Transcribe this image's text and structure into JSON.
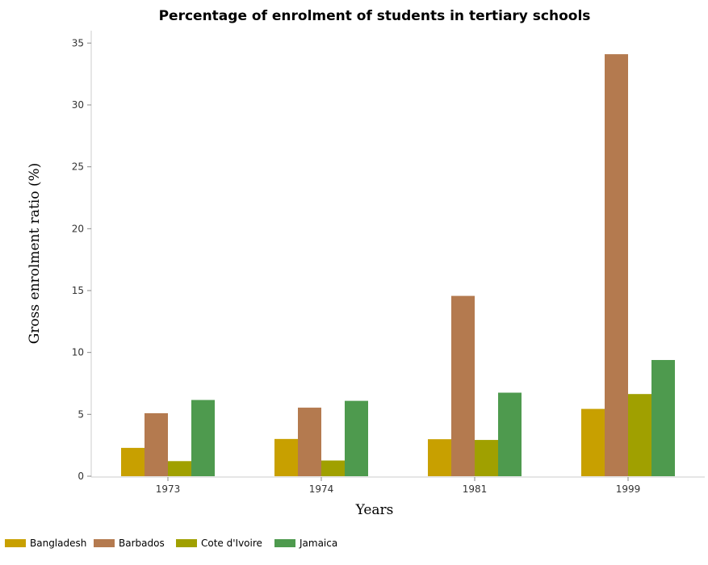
{
  "chart_data": {
    "type": "bar",
    "title": "Percentage of enrolment of students in tertiary schools",
    "xlabel": "Years",
    "ylabel": "Gross enrolment ratio (%)",
    "categories": [
      "1973",
      "1974",
      "1981",
      "1999"
    ],
    "ylim": [
      0,
      36
    ],
    "yticks": [
      0,
      5,
      10,
      15,
      20,
      25,
      30,
      35
    ],
    "grid": false,
    "legend_position": "bottom-left",
    "series": [
      {
        "name": "Bangladesh",
        "color": "#c8a000",
        "values": [
          2.29,
          3.01,
          2.99,
          5.44
        ]
      },
      {
        "name": "Barbados",
        "color": "#b47a4f",
        "values": [
          5.09,
          5.54,
          14.57,
          34.1
        ]
      },
      {
        "name": "Cote d'Ivoire",
        "color": "#a0a000",
        "values": [
          1.22,
          1.27,
          2.93,
          6.64
        ]
      },
      {
        "name": "Jamaica",
        "color": "#4e9a4e",
        "values": [
          6.16,
          6.09,
          6.75,
          9.39
        ]
      }
    ]
  }
}
